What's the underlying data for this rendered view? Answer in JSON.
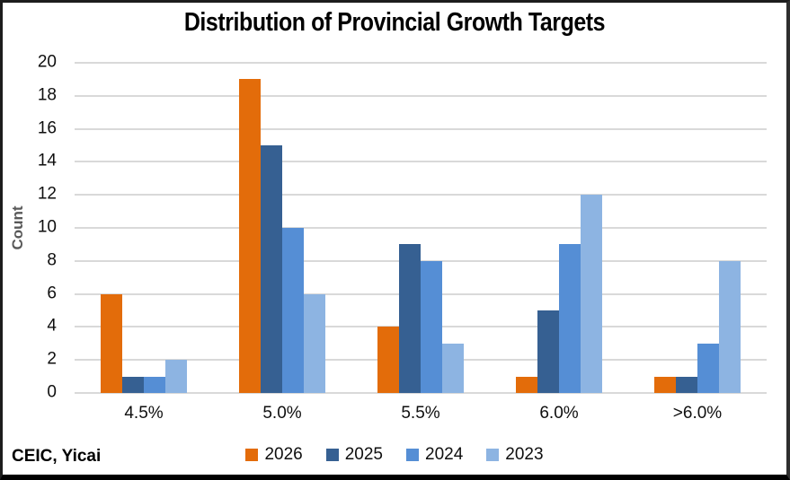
{
  "footer": {
    "source": "CEIC, Yicai"
  },
  "chart_data": {
    "type": "bar",
    "title": "Distribution of Provincial Growth Targets",
    "categories": [
      "4.5%",
      "5.0%",
      "5.5%",
      "6.0%",
      ">6.0%"
    ],
    "series": [
      {
        "name": "2026",
        "color": "#E36C0A",
        "values": [
          6,
          19,
          4,
          1,
          1
        ]
      },
      {
        "name": "2025",
        "color": "#366092",
        "values": [
          1,
          15,
          9,
          5,
          1
        ]
      },
      {
        "name": "2024",
        "color": "#558ED5",
        "values": [
          1,
          10,
          8,
          9,
          3
        ]
      },
      {
        "name": "2023",
        "color": "#8DB4E2",
        "values": [
          2,
          6,
          3,
          12,
          8
        ]
      }
    ],
    "xlabel": "",
    "ylabel": "Count",
    "ylim": [
      0,
      20
    ],
    "yticks": [
      0,
      2,
      4,
      6,
      8,
      10,
      12,
      14,
      16,
      18,
      20
    ],
    "grid": true,
    "gridline_color": "#D9D9D9",
    "legend_position": "bottom"
  }
}
